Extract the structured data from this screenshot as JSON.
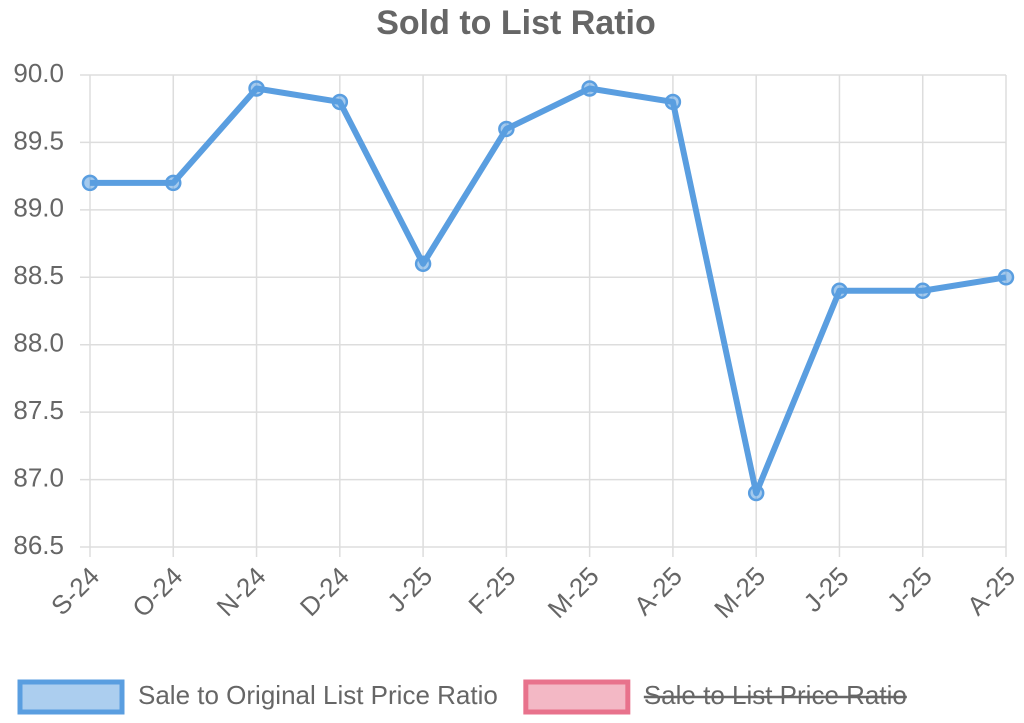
{
  "chart_data": {
    "type": "line",
    "title": "Sold to List Ratio",
    "categories": [
      "S-24",
      "O-24",
      "N-24",
      "D-24",
      "J-25",
      "F-25",
      "M-25",
      "A-25",
      "M-25",
      "J-25",
      "J-25",
      "A-25"
    ],
    "series": [
      {
        "name": "Sale to Original List Price Ratio",
        "color": "#5a9ee0",
        "hidden": false,
        "values": [
          89.2,
          89.2,
          89.9,
          89.8,
          88.6,
          89.6,
          89.9,
          89.8,
          86.9,
          88.4,
          88.4,
          88.5
        ]
      },
      {
        "name": "Sale to List Price Ratio",
        "color": "#e8728c",
        "hidden": true,
        "values": [
          null,
          null,
          null,
          null,
          null,
          null,
          null,
          null,
          null,
          null,
          null,
          null
        ]
      }
    ],
    "ylim": [
      86.5,
      90
    ],
    "yticks": [
      86.5,
      {
        "value": 87,
        "label": "87.0"
      },
      87.5,
      {
        "value": 88,
        "label": "88.0"
      },
      88.5,
      {
        "value": 89,
        "label": "89.0"
      },
      89.5,
      {
        "value": 90,
        "label": "90.0"
      }
    ],
    "grid": true
  }
}
